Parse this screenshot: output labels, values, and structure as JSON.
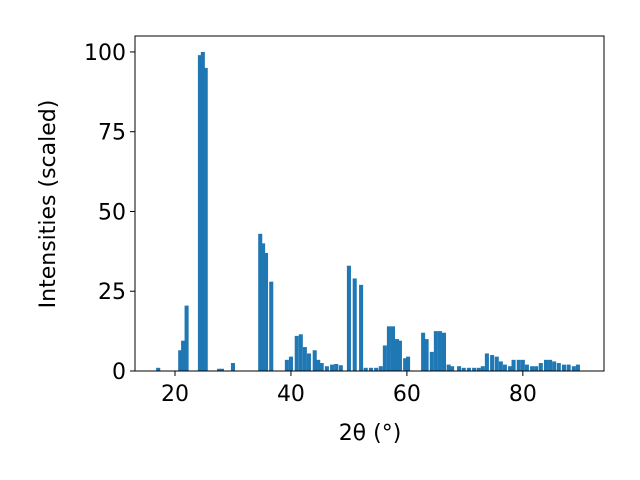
{
  "chart_data": {
    "type": "bar",
    "x_label": "2θ (°)",
    "y_label": "Intensities (scaled)",
    "color": "#1f77b4",
    "x": [
      17.1,
      20.9,
      21.4,
      22.0,
      24.3,
      24.8,
      25.3,
      27.6,
      28.1,
      30.0,
      34.7,
      35.2,
      35.7,
      36.6,
      39.3,
      40.0,
      41.0,
      41.7,
      42.4,
      43.1,
      44.1,
      44.7,
      45.3,
      46.2,
      47.1,
      47.8,
      48.6,
      50.0,
      51.0,
      52.1,
      52.9,
      53.8,
      54.7,
      55.5,
      56.2,
      56.9,
      57.6,
      58.3,
      58.8,
      59.7,
      60.2,
      62.8,
      63.4,
      64.3,
      65.0,
      65.7,
      66.4,
      67.2,
      67.8,
      69.0,
      69.8,
      70.7,
      71.6,
      72.4,
      73.1,
      73.8,
      74.7,
      75.5,
      76.2,
      76.9,
      77.8,
      78.4,
      79.3,
      80.0,
      80.7,
      81.6,
      82.3,
      83.1,
      84.0,
      84.7,
      85.4,
      86.2,
      87.1,
      87.9,
      88.8,
      89.5
    ],
    "values": [
      1,
      6.5,
      9.5,
      20.5,
      99,
      100,
      95,
      0.7,
      0.7,
      2.5,
      43,
      40,
      37,
      28,
      3.5,
      4.5,
      11,
      11.5,
      7.5,
      5.5,
      6.5,
      3.5,
      2.5,
      1.5,
      2,
      2.2,
      1.8,
      33,
      29,
      27,
      1,
      1,
      1,
      1.5,
      8,
      14,
      14,
      10,
      9.5,
      4,
      4.5,
      12,
      10,
      6,
      12.5,
      12.5,
      12,
      2,
      1.5,
      1.5,
      1,
      1,
      1,
      1,
      1.5,
      5.5,
      5,
      4.5,
      3,
      2,
      1.5,
      3.5,
      3.5,
      3.5,
      2,
      1.5,
      1.5,
      2.5,
      3.5,
      3.5,
      3,
      2.5,
      2,
      2,
      1.5,
      2
    ],
    "xlim": [
      13.1,
      94.0
    ],
    "ylim": [
      0,
      105
    ],
    "xticks": [
      20,
      40,
      60,
      80
    ],
    "yticks": [
      0,
      25,
      50,
      75,
      100
    ]
  }
}
